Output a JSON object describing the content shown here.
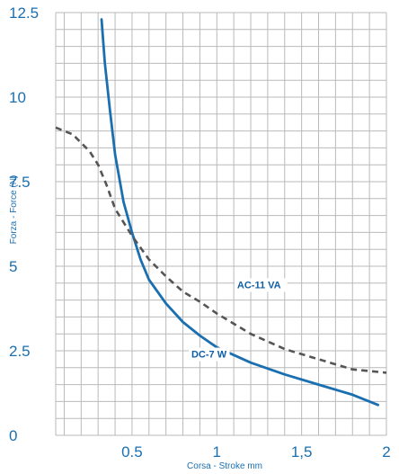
{
  "chart_data": {
    "type": "line",
    "title": "",
    "xlabel": "Corsa - Stroke mm",
    "ylabel": "Forza - Force (N)",
    "xlim": [
      0.05,
      2.0
    ],
    "ylim": [
      0,
      12.5
    ],
    "x_ticks": [
      {
        "value": 0.5,
        "label": "0.5"
      },
      {
        "value": 1.0,
        "label": "1"
      },
      {
        "value": 1.5,
        "label": "1,5"
      },
      {
        "value": 2.0,
        "label": "2"
      }
    ],
    "y_ticks": [
      {
        "value": 0,
        "label": "0"
      },
      {
        "value": 2.5,
        "label": "2.5"
      },
      {
        "value": 5,
        "label": "5"
      },
      {
        "value": 7.5,
        "label": "7.5"
      },
      {
        "value": 10,
        "label": "10"
      },
      {
        "value": 12.5,
        "label": "12.5"
      }
    ],
    "grid": true,
    "grid_step_x": 0.1,
    "grid_step_y": 0.5,
    "series": [
      {
        "name": "DC-7 W",
        "style": "solid",
        "color": "#1a6fb0",
        "x": [
          0.32,
          0.34,
          0.37,
          0.4,
          0.45,
          0.5,
          0.55,
          0.6,
          0.7,
          0.8,
          0.9,
          1.0,
          1.2,
          1.4,
          1.6,
          1.8,
          1.95
        ],
        "y": [
          12.3,
          11.0,
          9.6,
          8.3,
          6.9,
          6.0,
          5.2,
          4.6,
          3.9,
          3.35,
          2.95,
          2.6,
          2.15,
          1.8,
          1.5,
          1.2,
          0.9
        ]
      },
      {
        "name": "AC-11 VA",
        "style": "dashed",
        "color": "#555555",
        "x": [
          0.05,
          0.15,
          0.25,
          0.3,
          0.35,
          0.4,
          0.5,
          0.6,
          0.7,
          0.8,
          0.9,
          1.0,
          1.2,
          1.4,
          1.6,
          1.8,
          2.0
        ],
        "y": [
          9.1,
          8.9,
          8.4,
          8.0,
          7.4,
          6.7,
          5.9,
          5.2,
          4.7,
          4.25,
          3.95,
          3.6,
          3.0,
          2.55,
          2.25,
          1.95,
          1.85
        ]
      }
    ],
    "annotations": [
      {
        "text": "AC-11 VA",
        "x": 1.12,
        "y": 4.35
      },
      {
        "text": "DC-7 W",
        "x": 0.85,
        "y": 2.3
      }
    ]
  }
}
